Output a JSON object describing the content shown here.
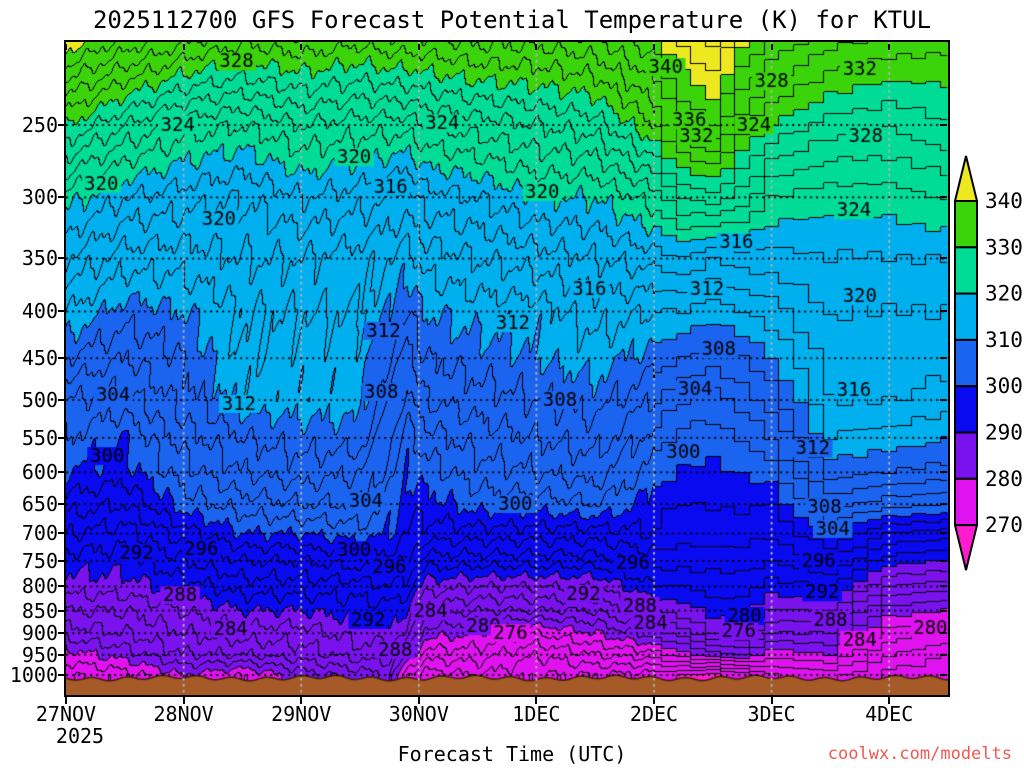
{
  "title": "2025112700 GFS Forecast Potential Temperature (K) for KTUL",
  "x_axis": {
    "title": "Forecast Time (UTC)",
    "tick_labels": [
      "27NOV",
      "28NOV",
      "29NOV",
      "30NOV",
      "1DEC",
      "2DEC",
      "3DEC",
      "4DEC"
    ],
    "year_label": "2025"
  },
  "y_axis": {
    "tick_labels": [
      "250",
      "300",
      "350",
      "400",
      "450",
      "500",
      "550",
      "600",
      "650",
      "700",
      "750",
      "800",
      "850",
      "900",
      "950",
      "1000"
    ]
  },
  "watermark": "coolwx.com/modelts",
  "colors": {
    "contour_line": "#000000",
    "terrain": "#a55a28",
    "terrain_edge": "#3a1e0c",
    "grid_horizontal": "#000000",
    "grid_vertical": "#b4b4b4",
    "watermark": "#ee5850",
    "text": "#000000",
    "background": "#ffffff"
  },
  "colorbar": {
    "tick_labels": [
      "340",
      "330",
      "320",
      "310",
      "300",
      "290",
      "280",
      "270"
    ]
  },
  "chart_data": {
    "type": "contour",
    "subtype": "time-height cross-section, filled contours",
    "title": "2025112700 GFS Forecast Potential Temperature (K) for KTUL",
    "xlabel": "Forecast Time (UTC)",
    "x_tick_labels": [
      "27NOV",
      "28NOV",
      "29NOV",
      "30NOV",
      "1DEC",
      "2DEC",
      "3DEC",
      "4DEC"
    ],
    "x_range_days": [
      0,
      7.5
    ],
    "y_scale": "log-pressure",
    "y_units": "hPa",
    "y_range_hPa": [
      203,
      1051
    ],
    "contour_interval_K": 2,
    "fill_interval_K": 10,
    "fill_levels_K": [
      270,
      280,
      290,
      300,
      310,
      320,
      330,
      340
    ],
    "fill_colors_low_to_high": [
      "#ff1bd0",
      "#e012f0",
      "#7a12ee",
      "#0a0af0",
      "#1a64f0",
      "#00b0ee",
      "#00dc96",
      "#3bd40a",
      "#eee820"
    ],
    "times_days": [
      0,
      0.5,
      1,
      1.5,
      2,
      2.5,
      2.75,
      2.9,
      3.05,
      3.5,
      4,
      4.5,
      5,
      5.25,
      5.5,
      5.75,
      6,
      6.5,
      7,
      7.5
    ],
    "levels_hPa": [
      200,
      250,
      300,
      350,
      400,
      450,
      500,
      550,
      600,
      650,
      700,
      750,
      800,
      850,
      900,
      950,
      1000
    ],
    "theta_K": [
      [
        342,
        338,
        335,
        333,
        334,
        333,
        334,
        334,
        334,
        335,
        335,
        336,
        340,
        343,
        345,
        341,
        338,
        335,
        334,
        333
      ],
      [
        330,
        326,
        323,
        322,
        324,
        323,
        323,
        323,
        324,
        325,
        326,
        327,
        332,
        336,
        338,
        333,
        330,
        327,
        326,
        328
      ],
      [
        321,
        318,
        317,
        316,
        318,
        317,
        316,
        315,
        317,
        318,
        320,
        320,
        323,
        326,
        327,
        325,
        322,
        321,
        321,
        322
      ],
      [
        316,
        313,
        313,
        314,
        314,
        313,
        312,
        311,
        313,
        314,
        315,
        316,
        317,
        318,
        316,
        317,
        317,
        318,
        318,
        318
      ],
      [
        312,
        309,
        310,
        312,
        312,
        312,
        310,
        308,
        310,
        311,
        311,
        313,
        312,
        312,
        311,
        312,
        313,
        316,
        316,
        316
      ],
      [
        308,
        306,
        308,
        312,
        311,
        311,
        308,
        305,
        308,
        309,
        310,
        311,
        309,
        308,
        307,
        308,
        310,
        315,
        315,
        315
      ],
      [
        304,
        303,
        307,
        311,
        311,
        311,
        306,
        303,
        306,
        307,
        308,
        309,
        306,
        304,
        303,
        305,
        307,
        314,
        314,
        313
      ],
      [
        302,
        300,
        305,
        308,
        309,
        309,
        304,
        301,
        303,
        305,
        306,
        307,
        303,
        301,
        301,
        302,
        304,
        312,
        311,
        310
      ],
      [
        300,
        299,
        303,
        306,
        307,
        306,
        303,
        300,
        301,
        303,
        304,
        305,
        301,
        300,
        299,
        300,
        301,
        309,
        308,
        307
      ],
      [
        297,
        296,
        301,
        303,
        304,
        304,
        301,
        299,
        299,
        301,
        301,
        302,
        299,
        298,
        298,
        298,
        298,
        305,
        303,
        302
      ],
      [
        294,
        293,
        297,
        300,
        300,
        301,
        300,
        298,
        297,
        297,
        297,
        297,
        298,
        297,
        297,
        297,
        296,
        300,
        296,
        295
      ],
      [
        291,
        291,
        294,
        296,
        296,
        297,
        297,
        296,
        293,
        293,
        293,
        293,
        295,
        295,
        295,
        295,
        294,
        296,
        291,
        290
      ],
      [
        289,
        289,
        291,
        293,
        293,
        293,
        294,
        293,
        289,
        288,
        288,
        288,
        292,
        292,
        293,
        293,
        291,
        292,
        286,
        285
      ],
      [
        286,
        286,
        288,
        290,
        290,
        291,
        291,
        290,
        285,
        284,
        284,
        284,
        288,
        289,
        291,
        291,
        288,
        288,
        281,
        280
      ],
      [
        283,
        284,
        286,
        287,
        287,
        289,
        289,
        288,
        281,
        280,
        278,
        280,
        283,
        285,
        288,
        288,
        284,
        284,
        277,
        276
      ],
      [
        279,
        281,
        284,
        284,
        285,
        287,
        287,
        282,
        277,
        277,
        274,
        276,
        277,
        279,
        281,
        282,
        279,
        280,
        274,
        272
      ],
      [
        276,
        277,
        280,
        278,
        281,
        283,
        284,
        276,
        273,
        274,
        272,
        272,
        271,
        270,
        269,
        271,
        274,
        275,
        271,
        270
      ]
    ],
    "contour_labels": [
      [
        328,
        1.45,
        213
      ],
      [
        324,
        0.95,
        250
      ],
      [
        320,
        0.3,
        290
      ],
      [
        324,
        3.2,
        249
      ],
      [
        320,
        2.45,
        271
      ],
      [
        316,
        2.76,
        292
      ],
      [
        320,
        4.05,
        296
      ],
      [
        340,
        5.1,
        216
      ],
      [
        336,
        5.3,
        247
      ],
      [
        332,
        5.36,
        257
      ],
      [
        332,
        6.75,
        217
      ],
      [
        328,
        6.0,
        224
      ],
      [
        324,
        5.85,
        250
      ],
      [
        328,
        6.8,
        257
      ],
      [
        324,
        6.7,
        310
      ],
      [
        320,
        6.75,
        385
      ],
      [
        320,
        1.3,
        317
      ],
      [
        316,
        5.7,
        336
      ],
      [
        316,
        4.45,
        378
      ],
      [
        312,
        1.47,
        505
      ],
      [
        312,
        2.7,
        420
      ],
      [
        308,
        2.68,
        490
      ],
      [
        312,
        3.8,
        412
      ],
      [
        308,
        4.2,
        500
      ],
      [
        304,
        0.4,
        494
      ],
      [
        300,
        0.35,
        576
      ],
      [
        304,
        2.55,
        645
      ],
      [
        300,
        3.82,
        650
      ],
      [
        312,
        5.45,
        378
      ],
      [
        308,
        5.55,
        440
      ],
      [
        304,
        5.35,
        487
      ],
      [
        300,
        5.25,
        570
      ],
      [
        316,
        6.7,
        488
      ],
      [
        312,
        6.35,
        565
      ],
      [
        308,
        6.45,
        655
      ],
      [
        304,
        6.52,
        692
      ],
      [
        292,
        0.6,
        735
      ],
      [
        296,
        1.15,
        728
      ],
      [
        288,
        0.97,
        818
      ],
      [
        284,
        1.4,
        890
      ],
      [
        300,
        2.45,
        730
      ],
      [
        296,
        2.75,
        762
      ],
      [
        292,
        2.57,
        870
      ],
      [
        288,
        2.8,
        938
      ],
      [
        284,
        3.1,
        852
      ],
      [
        280,
        3.55,
        884
      ],
      [
        276,
        3.78,
        900
      ],
      [
        296,
        4.82,
        755
      ],
      [
        292,
        4.4,
        815
      ],
      [
        288,
        4.88,
        840
      ],
      [
        284,
        4.97,
        878
      ],
      [
        280,
        5.77,
        862
      ],
      [
        276,
        5.72,
        896
      ],
      [
        296,
        6.4,
        750
      ],
      [
        292,
        6.43,
        812
      ],
      [
        288,
        6.5,
        870
      ],
      [
        284,
        6.75,
        915
      ],
      [
        280,
        7.35,
        888
      ]
    ],
    "legend_position": "right colorbar",
    "grid": "dotted horizontal at 50-hPa levels, dotted vertical at day ticks"
  }
}
